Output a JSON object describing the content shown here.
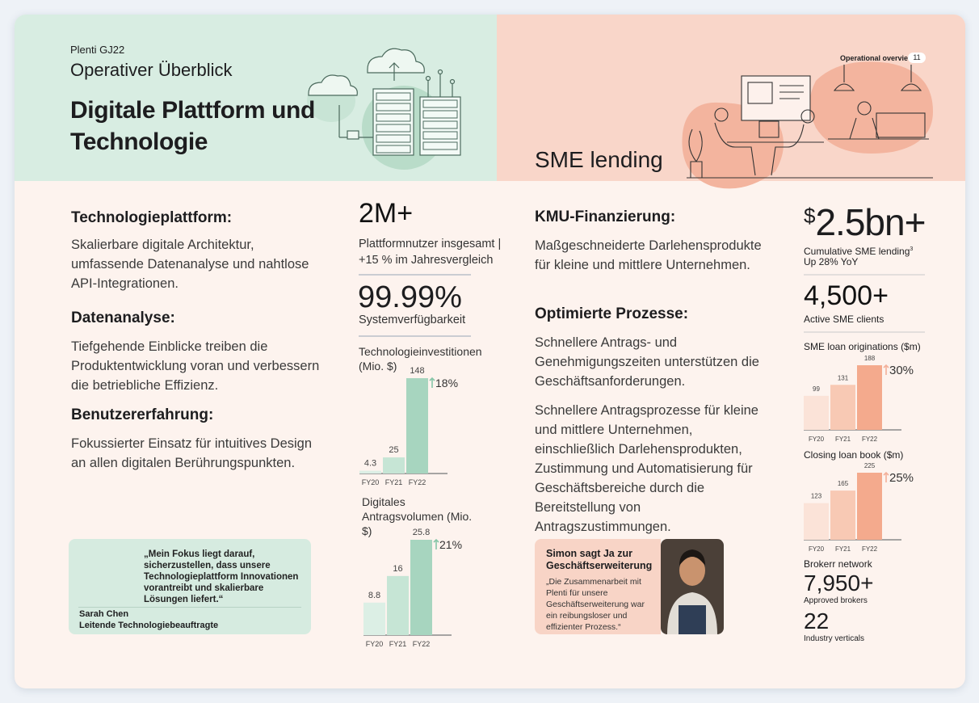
{
  "header_left": {
    "kicker": "Plenti GJ22",
    "subtitle": "Operativer Überblick",
    "title_lines": [
      "Digitale Plattform und",
      "Technologie"
    ]
  },
  "header_right": {
    "badge": "Operational overview",
    "page": "11",
    "title": "SME lending"
  },
  "left_sections": [
    {
      "heading": "Technologieplattform:",
      "text": "Skalierbare digitale Architektur, umfassende Datenanalyse und nahtlose API-Integrationen."
    },
    {
      "heading": "Datenanalyse:",
      "text": "Tiefgehende Einblicke treiben die Produktentwicklung voran und verbessern die betriebliche Effizienz."
    },
    {
      "heading": "Benutzererfahrung:",
      "text": "Fokussierter Einsatz für intuitives Design an allen digitalen Berührungspunkten."
    }
  ],
  "left_stats": [
    {
      "value": "2M+",
      "label": "Plattformnutzer insgesamt | +15 % im Jahresvergleich"
    },
    {
      "value": "99.99%",
      "label": "Systemverfügbarkeit"
    }
  ],
  "left_quote": {
    "text": "„Mein Fokus liegt darauf, sicherzustellen, dass unsere Technologieplattform Innovationen vorantreibt und skalierbare Lösungen liefert.“",
    "name": "Sarah Chen",
    "role": "Leitende Technologiebeauftragte"
  },
  "right_sections": [
    {
      "heading": "KMU-Finanzierung:",
      "paragraphs": [
        "Maßgeschneiderte Darlehensprodukte für kleine und mittlere Unternehmen."
      ]
    },
    {
      "heading": "Optimierte Prozesse:",
      "paragraphs": [
        "Schnellere Antrags- und Genehmigungszeiten unterstützen die Geschäftsanforderungen.",
        "Schnellere Antragsprozesse für kleine und mittlere Unternehmen, einschließlich Darlehensprodukten, Zustimmung und Automatisierung für Geschäftsbereiche durch die Bereitstellung von Antragszustimmungen."
      ]
    }
  ],
  "right_quote": {
    "title": "Simon sagt Ja zur Geschäftserweiterung",
    "text": "„Die Zusammenarbeit mit Plenti für unsere Geschäftserweiterung war ein reibungsloser und effizienter Prozess.“"
  },
  "right_stats": {
    "lending": {
      "currency": "$",
      "value": "2.5bn+",
      "label": "Cumulative SME lending",
      "footnote": "3",
      "sublabel": "Up 28% YoY"
    },
    "clients": {
      "value": "4,500+",
      "label": "Active SME clients"
    },
    "broker_heading": "Brokerr network",
    "brokers": {
      "value": "7,950+",
      "label": "Approved brokers"
    },
    "verticals": {
      "value": "22",
      "label": "Industry verticals"
    }
  },
  "chart_data": [
    {
      "type": "bar",
      "title": "Technologieinvestitionen (Mio. $)",
      "categories": [
        "FY20",
        "FY21",
        "FY22"
      ],
      "values": [
        4.3,
        25,
        148
      ],
      "colors": [
        "#dcefe5",
        "#c6e5d5",
        "#a7d5bf"
      ],
      "annotation": "18%",
      "accent": "#86c6a8"
    },
    {
      "type": "bar",
      "title": "Digitales Antragsvolumen (Mio. $)",
      "categories": [
        "FY20",
        "FY21",
        "FY22"
      ],
      "values": [
        8.8,
        16,
        25.8
      ],
      "colors": [
        "#dcefe5",
        "#c6e5d5",
        "#a7d5bf"
      ],
      "annotation": "21%",
      "accent": "#86c6a8"
    },
    {
      "type": "bar",
      "title": "SME loan originations ($m)",
      "categories": [
        "FY20",
        "FY21",
        "FY22"
      ],
      "values": [
        99,
        131,
        188
      ],
      "colors": [
        "#fbe3d8",
        "#f8c9b4",
        "#f4aa8d"
      ],
      "annotation": "30%",
      "accent": "#f3b09a"
    },
    {
      "type": "bar",
      "title": "Closing loan book ($m)",
      "categories": [
        "FY20",
        "FY21",
        "FY22"
      ],
      "values": [
        123,
        165,
        225
      ],
      "colors": [
        "#fbe3d8",
        "#f8c9b4",
        "#f4aa8d"
      ],
      "annotation": "25%",
      "accent": "#f3b09a"
    }
  ]
}
